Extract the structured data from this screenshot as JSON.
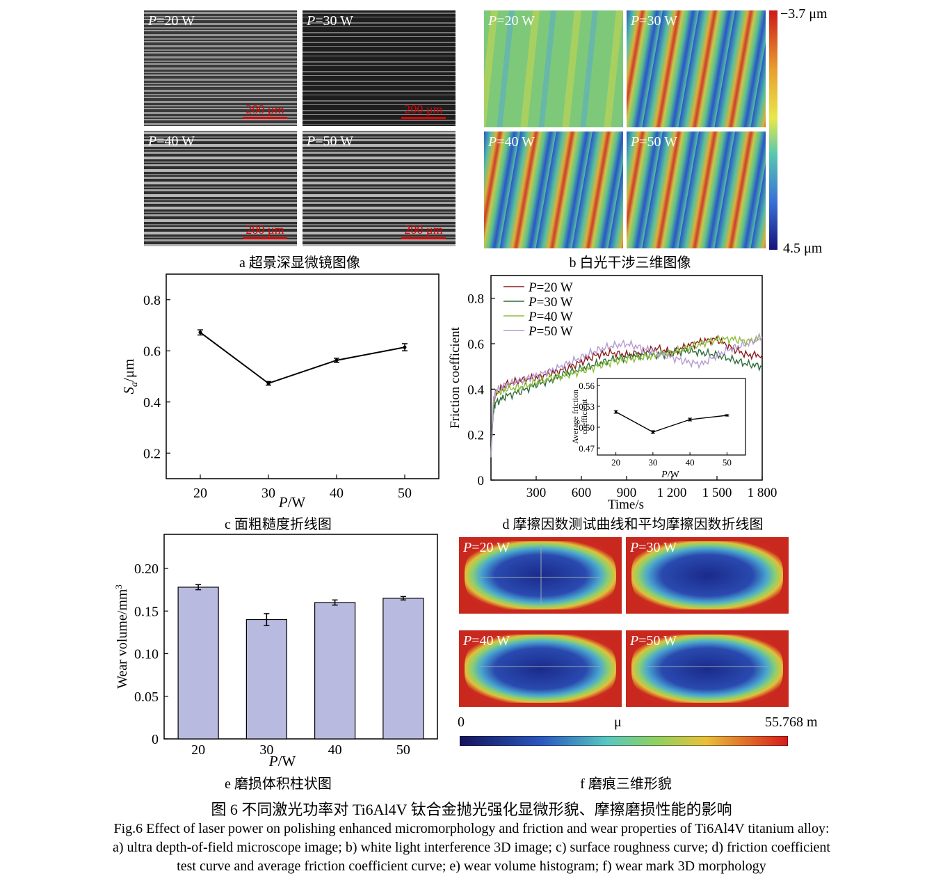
{
  "panel_a": {
    "power_labels": [
      "P=20 W",
      "P=30 W",
      "P=40 W",
      "P=50 W"
    ],
    "scale_label": "200 μm",
    "caption": "a  超景深显微镜图像"
  },
  "panel_b": {
    "power_labels": [
      "P=20 W",
      "P=30 W",
      "P=40 W",
      "P=50 W"
    ],
    "colorbar_top": "−3.7 μm",
    "colorbar_bottom": "4.5 μm",
    "caption": "b  白光干涉三维图像"
  },
  "panel_f": {
    "power_labels": [
      "P=20 W",
      "P=30 W",
      "P=40 W",
      "P=50 W"
    ],
    "colorbar_left": "0",
    "colorbar_mid": "μ",
    "colorbar_right": "55.768 m",
    "caption": "f  磨痕三维形貌"
  },
  "captions": {
    "c": "c  面粗糙度折线图",
    "d": "d  摩擦因数测试曲线和平均摩擦因数折线图",
    "e": "e  磨损体积柱状图"
  },
  "figure_caption": {
    "cn": "图 6    不同激光功率对 Ti6Al4V 钛合金抛光强化显微形貌、摩擦磨损性能的影响",
    "en1": "Fig.6 Effect of laser power on polishing enhanced micromorphology and friction and wear properties of Ti6Al4V titanium alloy:",
    "en2": "a) ultra depth-of-field microscope image; b) white light interference 3D image; c) surface roughness curve; d) friction coefficient",
    "en3": "test curve and average friction coefficient curve; e) wear volume histogram; f) wear mark 3D morphology"
  },
  "chart_data": [
    {
      "id": "c",
      "type": "line",
      "x": [
        20,
        30,
        40,
        50
      ],
      "values": [
        0.672,
        0.473,
        0.563,
        0.614
      ],
      "errors": [
        0.01,
        0.007,
        0.008,
        0.014
      ],
      "xlabel": "P/W",
      "ylabel": "Sa/μm",
      "xticks": [
        "20",
        "30",
        "40",
        "50"
      ],
      "yticks": [
        "0.2",
        "0.4",
        "0.6",
        "0.8"
      ],
      "xlim": [
        15,
        55
      ],
      "ylim": [
        0.1,
        0.9
      ]
    },
    {
      "id": "d",
      "type": "line",
      "xlabel": "Time/s",
      "ylabel": "Friction coefficient",
      "xticks": [
        "300",
        "600",
        "900",
        "1 200",
        "1 500",
        "1 800"
      ],
      "yticks": [
        "0",
        "0.2",
        "0.4",
        "0.6",
        "0.8"
      ],
      "xlim": [
        0,
        1800
      ],
      "ylim": [
        0,
        0.9
      ],
      "legend_position": "top-left",
      "series": [
        {
          "name": "P=20 W",
          "color": "#8b1a1a",
          "x": [
            0,
            15,
            30,
            100,
            200,
            300,
            400,
            500,
            600,
            700,
            800,
            900,
            1000,
            1100,
            1200,
            1300,
            1400,
            1500,
            1600,
            1700,
            1800
          ],
          "y": [
            0.1,
            0.32,
            0.38,
            0.42,
            0.44,
            0.45,
            0.47,
            0.49,
            0.52,
            0.55,
            0.56,
            0.55,
            0.56,
            0.58,
            0.56,
            0.59,
            0.61,
            0.62,
            0.58,
            0.55,
            0.55
          ]
        },
        {
          "name": "P=30 W",
          "color": "#2e6b3a",
          "x": [
            0,
            15,
            30,
            100,
            200,
            300,
            400,
            500,
            600,
            700,
            800,
            900,
            1000,
            1100,
            1200,
            1300,
            1400,
            1500,
            1600,
            1700,
            1800
          ],
          "y": [
            0.1,
            0.3,
            0.34,
            0.37,
            0.39,
            0.42,
            0.44,
            0.47,
            0.49,
            0.51,
            0.53,
            0.54,
            0.55,
            0.55,
            0.56,
            0.57,
            0.56,
            0.55,
            0.53,
            0.51,
            0.5
          ]
        },
        {
          "name": "P=40 W",
          "color": "#8cbf3a",
          "x": [
            0,
            15,
            30,
            100,
            200,
            300,
            400,
            500,
            600,
            700,
            800,
            900,
            1000,
            1100,
            1200,
            1300,
            1400,
            1500,
            1600,
            1700,
            1800
          ],
          "y": [
            0.1,
            0.33,
            0.38,
            0.4,
            0.41,
            0.43,
            0.45,
            0.46,
            0.48,
            0.5,
            0.52,
            0.53,
            0.54,
            0.55,
            0.56,
            0.58,
            0.6,
            0.62,
            0.62,
            0.61,
            0.62
          ]
        },
        {
          "name": "P=50 W",
          "color": "#b59ad0",
          "x": [
            0,
            15,
            30,
            100,
            200,
            300,
            400,
            500,
            600,
            700,
            800,
            900,
            1000,
            1100,
            1200,
            1300,
            1400,
            1500,
            1600,
            1700,
            1800
          ],
          "y": [
            0.1,
            0.34,
            0.39,
            0.42,
            0.44,
            0.46,
            0.48,
            0.51,
            0.54,
            0.57,
            0.59,
            0.6,
            0.58,
            0.56,
            0.54,
            0.52,
            0.51,
            0.55,
            0.58,
            0.6,
            0.63
          ]
        }
      ],
      "inset": {
        "type": "line",
        "x": [
          20,
          30,
          40,
          50
        ],
        "values": [
          0.522,
          0.493,
          0.511,
          0.517
        ],
        "errors": [
          0.002,
          0.002,
          0.002,
          0.001
        ],
        "xlabel": "P/W",
        "ylabel": "Average friction coefficient",
        "xticks": [
          "20",
          "30",
          "40",
          "50"
        ],
        "yticks": [
          "0.47",
          "0.50",
          "0.53",
          "0.56"
        ],
        "xlim": [
          15,
          55
        ],
        "ylim": [
          0.46,
          0.57
        ]
      }
    },
    {
      "id": "e",
      "type": "bar",
      "categories": [
        "20",
        "30",
        "40",
        "50"
      ],
      "values": [
        0.178,
        0.14,
        0.16,
        0.165
      ],
      "errors": [
        0.003,
        0.007,
        0.003,
        0.002
      ],
      "xlabel": "P/W",
      "ylabel": "Wear volume/mm³",
      "yticks": [
        "0",
        "0.05",
        "0.10",
        "0.15",
        "0.20"
      ],
      "ylim": [
        0,
        0.24
      ],
      "bar_color": "#b8badf"
    }
  ]
}
